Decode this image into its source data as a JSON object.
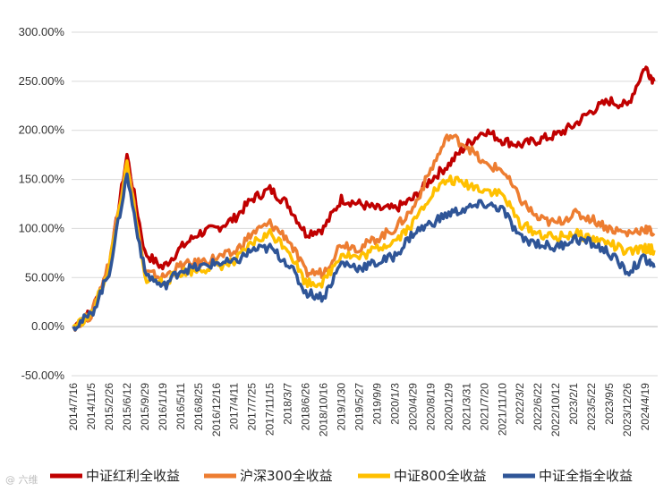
{
  "chart_data": {
    "type": "line",
    "title": "",
    "xlabel": "",
    "ylabel": "",
    "ylim": [
      -50,
      300
    ],
    "y_ticks": [
      -50,
      0,
      50,
      100,
      150,
      200,
      250,
      300
    ],
    "y_tick_labels": [
      "-50.00%",
      "0.00%",
      "50.00%",
      "100.00%",
      "150.00%",
      "200.00%",
      "250.00%",
      "300.00%"
    ],
    "x_tick_labels": [
      "2014/7/16",
      "2014/11/5",
      "2015/2/26",
      "2015/6/12",
      "2015/9/29",
      "2016/1/19",
      "2016/5/11",
      "2016/8/25",
      "2016/12/16",
      "2017/4/11",
      "2017/7/25",
      "2017/11/15",
      "2018/3/7",
      "2018/6/26",
      "2018/10/16",
      "2019/1/30",
      "2019/5/27",
      "2019/9/9",
      "2020/1/3",
      "2020/4/29",
      "2020/8/19",
      "2020/12/9",
      "2021/3/31",
      "2021/7/20",
      "2021/11/10",
      "2022/3/2",
      "2022/6/22",
      "2022/10/12",
      "2023/2/1",
      "2023/5/22",
      "2023/9/5",
      "2023/12/26",
      "2024/4/19"
    ],
    "legend_position": "bottom",
    "grid": true,
    "series": [
      {
        "name": "中证红利全收益",
        "color": "#c00000",
        "x": [
          0,
          1,
          2,
          3,
          4,
          5,
          6,
          7,
          8,
          9,
          10,
          11,
          12,
          13,
          14,
          15,
          16,
          17,
          18,
          19,
          20,
          21,
          22,
          23,
          24,
          25,
          26,
          27,
          28,
          29,
          30,
          31,
          32,
          32.5
        ],
        "values": [
          0,
          15,
          60,
          175,
          75,
          60,
          80,
          95,
          100,
          110,
          130,
          140,
          125,
          95,
          100,
          130,
          125,
          120,
          120,
          130,
          150,
          165,
          185,
          200,
          190,
          185,
          190,
          195,
          205,
          220,
          230,
          225,
          265,
          250
        ]
      },
      {
        "name": "沪深300全收益",
        "color": "#ed7d31",
        "x": [
          0,
          1,
          2,
          3,
          4,
          5,
          6,
          7,
          8,
          9,
          10,
          11,
          12,
          13,
          14,
          15,
          16,
          17,
          18,
          19,
          20,
          21,
          22,
          23,
          24,
          25,
          26,
          27,
          28,
          29,
          30,
          31,
          32,
          32.5
        ],
        "values": [
          0,
          12,
          65,
          170,
          55,
          50,
          62,
          65,
          70,
          75,
          95,
          105,
          90,
          55,
          55,
          85,
          80,
          90,
          100,
          120,
          160,
          195,
          185,
          165,
          160,
          130,
          110,
          105,
          115,
          110,
          100,
          95,
          100,
          95
        ]
      },
      {
        "name": "中证800全收益",
        "color": "#ffc000",
        "x": [
          0,
          1,
          2,
          3,
          4,
          5,
          6,
          7,
          8,
          9,
          10,
          11,
          12,
          13,
          14,
          15,
          16,
          17,
          18,
          19,
          20,
          21,
          22,
          23,
          24,
          25,
          26,
          27,
          28,
          29,
          30,
          31,
          32,
          32.5
        ],
        "values": [
          0,
          12,
          60,
          165,
          50,
          45,
          55,
          58,
          62,
          65,
          85,
          95,
          80,
          45,
          45,
          75,
          70,
          80,
          88,
          105,
          135,
          150,
          145,
          140,
          135,
          105,
          95,
          90,
          95,
          90,
          85,
          75,
          80,
          78
        ]
      },
      {
        "name": "中证全指全收益",
        "color": "#2f5597",
        "x": [
          0,
          1,
          2,
          3,
          4,
          5,
          6,
          7,
          8,
          9,
          10,
          11,
          12,
          13,
          14,
          15,
          16,
          17,
          18,
          19,
          20,
          21,
          22,
          23,
          24,
          25,
          26,
          27,
          28,
          29,
          30,
          31,
          32,
          32.5
        ],
        "values": [
          0,
          12,
          55,
          155,
          55,
          40,
          58,
          60,
          65,
          65,
          78,
          80,
          65,
          35,
          30,
          65,
          60,
          65,
          72,
          95,
          105,
          115,
          120,
          125,
          120,
          90,
          85,
          80,
          90,
          85,
          75,
          55,
          70,
          60
        ]
      }
    ],
    "watermark": "@ 六维"
  }
}
